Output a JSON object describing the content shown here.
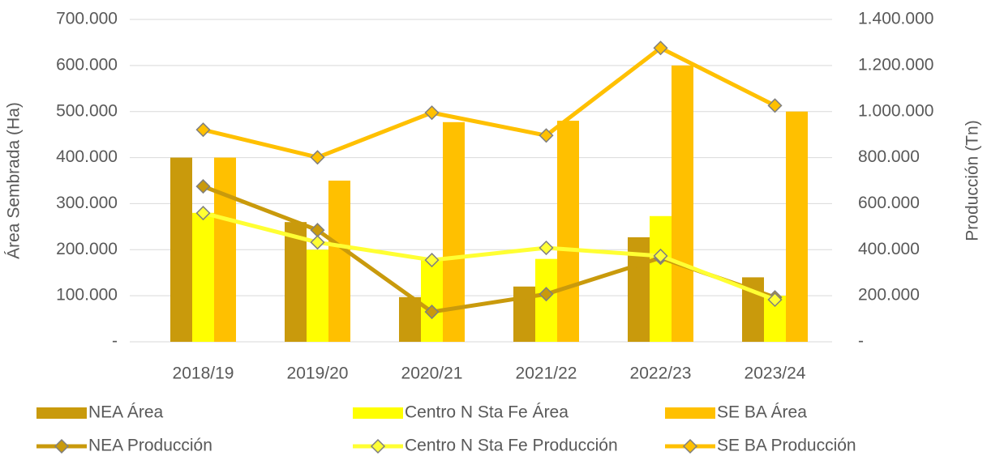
{
  "chart_data": {
    "type": "bar",
    "y_label": "Área Sembrada (Ha)",
    "y2_label": "Producción (Tn)",
    "categories": [
      "2018/19",
      "2019/20",
      "2020/21",
      "2021/22",
      "2022/23",
      "2023/24"
    ],
    "series": [
      {
        "name": "NEA Área",
        "type": "bar",
        "color": "#c99a0c",
        "values": [
          400000,
          260000,
          97000,
          120000,
          227000,
          140000
        ]
      },
      {
        "name": "Centro N Sta Fe Área",
        "type": "bar",
        "color": "#ffff00",
        "values": [
          280000,
          200000,
          180000,
          180000,
          273000,
          100000
        ]
      },
      {
        "name": "SE BA Área",
        "type": "bar",
        "color": "#ffc000",
        "values": [
          400000,
          350000,
          477000,
          480000,
          600000,
          500000
        ]
      },
      {
        "name": "NEA Producción",
        "type": "line",
        "axis": "y2",
        "color": "#c99a0c",
        "values": [
          675000,
          485000,
          130000,
          207000,
          365000,
          193000
        ]
      },
      {
        "name": "Centro N Sta Fe Producción",
        "type": "line",
        "axis": "y2",
        "color": "#ffff33",
        "values": [
          559000,
          432000,
          355000,
          408000,
          373000,
          183000
        ]
      },
      {
        "name": "SE BA Producción",
        "type": "line",
        "axis": "y2",
        "color": "#ffc000",
        "values": [
          921000,
          801000,
          995000,
          896000,
          1276000,
          1026000
        ]
      }
    ],
    "ylim": [
      0,
      700000
    ],
    "yticks": [
      {
        "value": 0,
        "label": "-"
      },
      {
        "value": 100000,
        "label": "100.000"
      },
      {
        "value": 200000,
        "label": "200.000"
      },
      {
        "value": 300000,
        "label": "300.000"
      },
      {
        "value": 400000,
        "label": "400.000"
      },
      {
        "value": 500000,
        "label": "500.000"
      },
      {
        "value": 600000,
        "label": "600.000"
      },
      {
        "value": 700000,
        "label": "700.000"
      }
    ],
    "y2lim": [
      0,
      1400000
    ],
    "y2ticks": [
      {
        "value": 0,
        "label": "-"
      },
      {
        "value": 200000,
        "label": "200.000"
      },
      {
        "value": 400000,
        "label": "400.000"
      },
      {
        "value": 600000,
        "label": "600.000"
      },
      {
        "value": 800000,
        "label": "800.000"
      },
      {
        "value": 1000000,
        "label": "1.000.000"
      },
      {
        "value": 1200000,
        "label": "1.200.000"
      },
      {
        "value": 1400000,
        "label": "1.400.000"
      }
    ],
    "grid": true
  }
}
